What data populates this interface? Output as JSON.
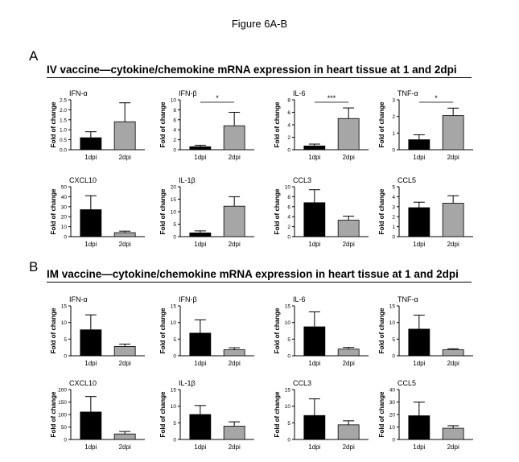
{
  "figure_title": "Figure 6A-B",
  "panels": [
    {
      "letter": "A",
      "heading": "IV vaccine—cytokine/chemokine mRNA expression in heart tissue at 1 and 2dpi"
    },
    {
      "letter": "B",
      "heading": "IM vaccine—cytokine/chemokine mRNA expression in heart tissue at 1 and 2dpi"
    }
  ],
  "colors": {
    "day1_bar": "#000000",
    "day2_bar": "#a6a6a6"
  },
  "chart_data": [
    {
      "type": "bar",
      "panel": "A",
      "title": "IFN-α",
      "xlabel": "",
      "ylabel": "Fold of change",
      "categories": [
        "1dpi",
        "2dpi"
      ],
      "values": [
        0.6,
        1.4
      ],
      "errors": [
        0.3,
        0.95
      ],
      "ylim": [
        0,
        2.5
      ],
      "yticks": [
        "0.0",
        "0.5",
        "1.0",
        "1.5",
        "2.0",
        "2.5"
      ],
      "significance": null
    },
    {
      "type": "bar",
      "panel": "A",
      "title": "IFN-β",
      "xlabel": "",
      "ylabel": "Fold of change",
      "categories": [
        "1dpi",
        "2dpi"
      ],
      "values": [
        0.6,
        4.8
      ],
      "errors": [
        0.3,
        2.7
      ],
      "ylim": [
        0,
        10
      ],
      "yticks": [
        "0",
        "2",
        "4",
        "6",
        "8",
        "10"
      ],
      "significance": "*"
    },
    {
      "type": "bar",
      "panel": "A",
      "title": "IL-6",
      "xlabel": "",
      "ylabel": "Fold of change",
      "categories": [
        "1dpi",
        "2dpi"
      ],
      "values": [
        0.6,
        5.0
      ],
      "errors": [
        0.3,
        1.7
      ],
      "ylim": [
        0,
        8
      ],
      "yticks": [
        "0",
        "2",
        "4",
        "6",
        "8"
      ],
      "significance": "***"
    },
    {
      "type": "bar",
      "panel": "A",
      "title": "TNF-α",
      "xlabel": "",
      "ylabel": "Fold of change",
      "categories": [
        "1dpi",
        "2dpi"
      ],
      "values": [
        0.6,
        2.05
      ],
      "errors": [
        0.3,
        0.45
      ],
      "ylim": [
        0,
        3
      ],
      "yticks": [
        "0",
        "1",
        "2",
        "3"
      ],
      "significance": "*"
    },
    {
      "type": "bar",
      "panel": "A",
      "title": "CXCL10",
      "xlabel": "",
      "ylabel": "Fold of change",
      "categories": [
        "1dpi",
        "2dpi"
      ],
      "values": [
        27,
        4
      ],
      "errors": [
        14,
        1.5
      ],
      "ylim": [
        0,
        50
      ],
      "yticks": [
        "0",
        "10",
        "20",
        "30",
        "40",
        "50"
      ],
      "significance": null
    },
    {
      "type": "bar",
      "panel": "A",
      "title": "IL-1β",
      "xlabel": "",
      "ylabel": "Fold of change",
      "categories": [
        "1dpi",
        "2dpi"
      ],
      "values": [
        1.5,
        12.2
      ],
      "errors": [
        0.8,
        3.8
      ],
      "ylim": [
        0,
        20
      ],
      "yticks": [
        "0",
        "5",
        "10",
        "15",
        "20"
      ],
      "significance": null
    },
    {
      "type": "bar",
      "panel": "A",
      "title": "CCL3",
      "xlabel": "",
      "ylabel": "Fold of change",
      "categories": [
        "1dpi",
        "2dpi"
      ],
      "values": [
        6.8,
        3.3
      ],
      "errors": [
        2.6,
        0.8
      ],
      "ylim": [
        0,
        10
      ],
      "yticks": [
        "0",
        "2",
        "4",
        "6",
        "8",
        "10"
      ],
      "significance": null
    },
    {
      "type": "bar",
      "panel": "A",
      "title": "CCL5",
      "xlabel": "",
      "ylabel": "Fold of change",
      "categories": [
        "1dpi",
        "2dpi"
      ],
      "values": [
        2.9,
        3.35
      ],
      "errors": [
        0.55,
        0.75
      ],
      "ylim": [
        0,
        5
      ],
      "yticks": [
        "0",
        "1",
        "2",
        "3",
        "4",
        "5"
      ],
      "significance": null
    },
    {
      "type": "bar",
      "panel": "B",
      "title": "IFN-α",
      "xlabel": "",
      "ylabel": "Fold of change",
      "categories": [
        "1dpi",
        "2dpi"
      ],
      "values": [
        7.8,
        2.8
      ],
      "errors": [
        4.5,
        0.7
      ],
      "ylim": [
        0,
        15
      ],
      "yticks": [
        "0",
        "5",
        "10",
        "15"
      ],
      "significance": null
    },
    {
      "type": "bar",
      "panel": "B",
      "title": "IFN-β",
      "xlabel": "",
      "ylabel": "Fold of change",
      "categories": [
        "1dpi",
        "2dpi"
      ],
      "values": [
        6.8,
        1.8
      ],
      "errors": [
        4.0,
        0.6
      ],
      "ylim": [
        0,
        15
      ],
      "yticks": [
        "0",
        "5",
        "10",
        "15"
      ],
      "significance": null
    },
    {
      "type": "bar",
      "panel": "B",
      "title": "IL-6",
      "xlabel": "",
      "ylabel": "Fold of change",
      "categories": [
        "1dpi",
        "2dpi"
      ],
      "values": [
        8.7,
        2.0
      ],
      "errors": [
        4.5,
        0.5
      ],
      "ylim": [
        0,
        15
      ],
      "yticks": [
        "0",
        "5",
        "10",
        "15"
      ],
      "significance": null
    },
    {
      "type": "bar",
      "panel": "B",
      "title": "TNF-α",
      "xlabel": "",
      "ylabel": "Fold of change",
      "categories": [
        "1dpi",
        "2dpi"
      ],
      "values": [
        8.0,
        1.8
      ],
      "errors": [
        4.2,
        0.3
      ],
      "ylim": [
        0,
        15
      ],
      "yticks": [
        "0",
        "5",
        "10",
        "15"
      ],
      "significance": null
    },
    {
      "type": "bar",
      "panel": "B",
      "title": "CXCL10",
      "xlabel": "",
      "ylabel": "Fold of change",
      "categories": [
        "1dpi",
        "2dpi"
      ],
      "values": [
        110,
        22
      ],
      "errors": [
        62,
        10
      ],
      "ylim": [
        0,
        200
      ],
      "yticks": [
        "0",
        "50",
        "100",
        "150",
        "200"
      ],
      "significance": null
    },
    {
      "type": "bar",
      "panel": "B",
      "title": "IL-1β",
      "xlabel": "",
      "ylabel": "Fold of change",
      "categories": [
        "1dpi",
        "2dpi"
      ],
      "values": [
        7.5,
        4.0
      ],
      "errors": [
        2.7,
        1.3
      ],
      "ylim": [
        0,
        15
      ],
      "yticks": [
        "0",
        "5",
        "10",
        "15"
      ],
      "significance": null
    },
    {
      "type": "bar",
      "panel": "B",
      "title": "CCL3",
      "xlabel": "",
      "ylabel": "Fold of change",
      "categories": [
        "1dpi",
        "2dpi"
      ],
      "values": [
        7.2,
        4.4
      ],
      "errors": [
        5.0,
        1.2
      ],
      "ylim": [
        0,
        15
      ],
      "yticks": [
        "0",
        "5",
        "10",
        "15"
      ],
      "significance": null
    },
    {
      "type": "bar",
      "panel": "B",
      "title": "CCL5",
      "xlabel": "",
      "ylabel": "Fold of change",
      "categories": [
        "1dpi",
        "2dpi"
      ],
      "values": [
        19,
        9
      ],
      "errors": [
        11,
        2
      ],
      "ylim": [
        0,
        40
      ],
      "yticks": [
        "0",
        "10",
        "20",
        "30",
        "40"
      ],
      "significance": null
    }
  ]
}
